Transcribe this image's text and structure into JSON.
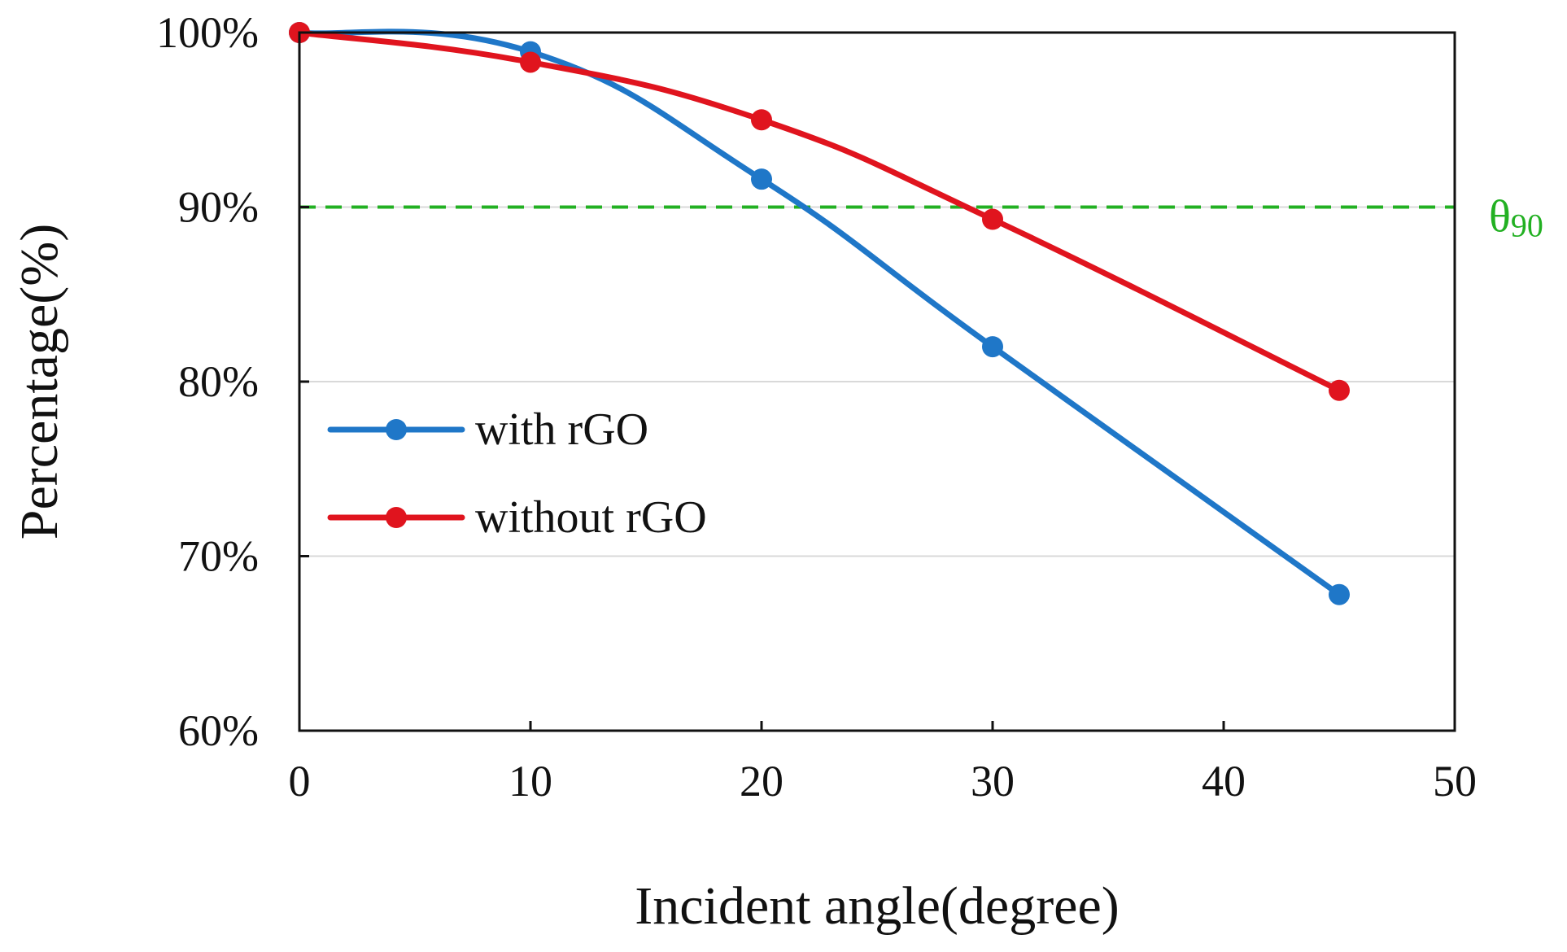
{
  "chart_data": {
    "type": "line",
    "xlabel": "Incident angle(degree)",
    "ylabel": "Percentage(%)",
    "xlim": [
      0,
      50
    ],
    "ylim": [
      60,
      100
    ],
    "x_ticks": [
      0,
      10,
      20,
      30,
      40,
      50
    ],
    "x_tick_labels": [
      "0",
      "10",
      "20",
      "30",
      "40",
      "50"
    ],
    "y_ticks": [
      60,
      70,
      80,
      90,
      100
    ],
    "y_tick_labels": [
      "60%",
      "70%",
      "80%",
      "90%",
      "100%"
    ],
    "gridlines_y": [
      70,
      80,
      90
    ],
    "legend_position": "middle-left",
    "series": [
      {
        "name": "with rGO",
        "color": "#1f77c8",
        "x": [
          0,
          10,
          20,
          30,
          45
        ],
        "y": [
          100,
          98.9,
          91.6,
          82.0,
          67.8
        ]
      },
      {
        "name": "without rGO",
        "color": "#e0141e",
        "x": [
          0,
          10,
          20,
          30,
          45
        ],
        "y": [
          100,
          98.3,
          95.0,
          89.3,
          79.5
        ]
      }
    ],
    "reference_line": {
      "y": 90,
      "label": "θ",
      "label_subscript": "90",
      "color": "#22b022",
      "style": "dashed"
    }
  }
}
